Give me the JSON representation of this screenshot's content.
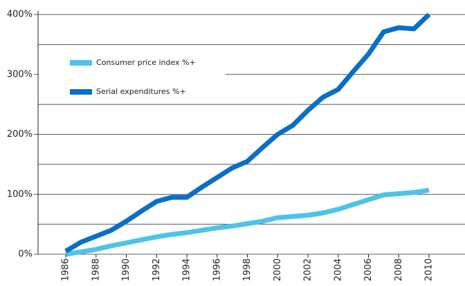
{
  "chart_data": {
    "type": "line",
    "x": [
      1986,
      1987,
      1988,
      1989,
      1990,
      1991,
      1992,
      1993,
      1994,
      1995,
      1996,
      1997,
      1998,
      1999,
      2000,
      2001,
      2002,
      2003,
      2004,
      2005,
      2006,
      2007,
      2008,
      2009,
      2010
    ],
    "series": [
      {
        "name": "Consumer price index %+",
        "color": "#4dc3e8",
        "values": [
          0,
          4,
          8,
          14,
          19,
          24,
          29,
          33,
          36,
          40,
          44,
          47,
          51,
          55,
          61,
          63,
          65,
          69,
          75,
          83,
          91,
          99,
          101,
          103,
          107
        ]
      },
      {
        "name": "Serial expenditures %+",
        "color": "#0a6fc6",
        "values": [
          5,
          20,
          30,
          40,
          55,
          72,
          88,
          95,
          95,
          112,
          128,
          144,
          155,
          178,
          200,
          215,
          240,
          262,
          275,
          305,
          334,
          371,
          378,
          376,
          400
        ]
      }
    ],
    "xlim": [
      1985,
      2012
    ],
    "xticks": [
      1986,
      1988,
      1990,
      1992,
      1994,
      1996,
      1998,
      2000,
      2002,
      2004,
      2006,
      2008,
      2010
    ],
    "ylim": [
      0,
      400
    ],
    "yticks": [
      {
        "value": 0,
        "label": "0%"
      },
      {
        "value": 100,
        "label": "100%"
      },
      {
        "value": 200,
        "label": "200%"
      },
      {
        "value": 300,
        "label": "300%"
      },
      {
        "value": 400,
        "label": "400%"
      }
    ],
    "yminor": [
      50,
      150,
      250,
      350
    ],
    "grid": true
  }
}
